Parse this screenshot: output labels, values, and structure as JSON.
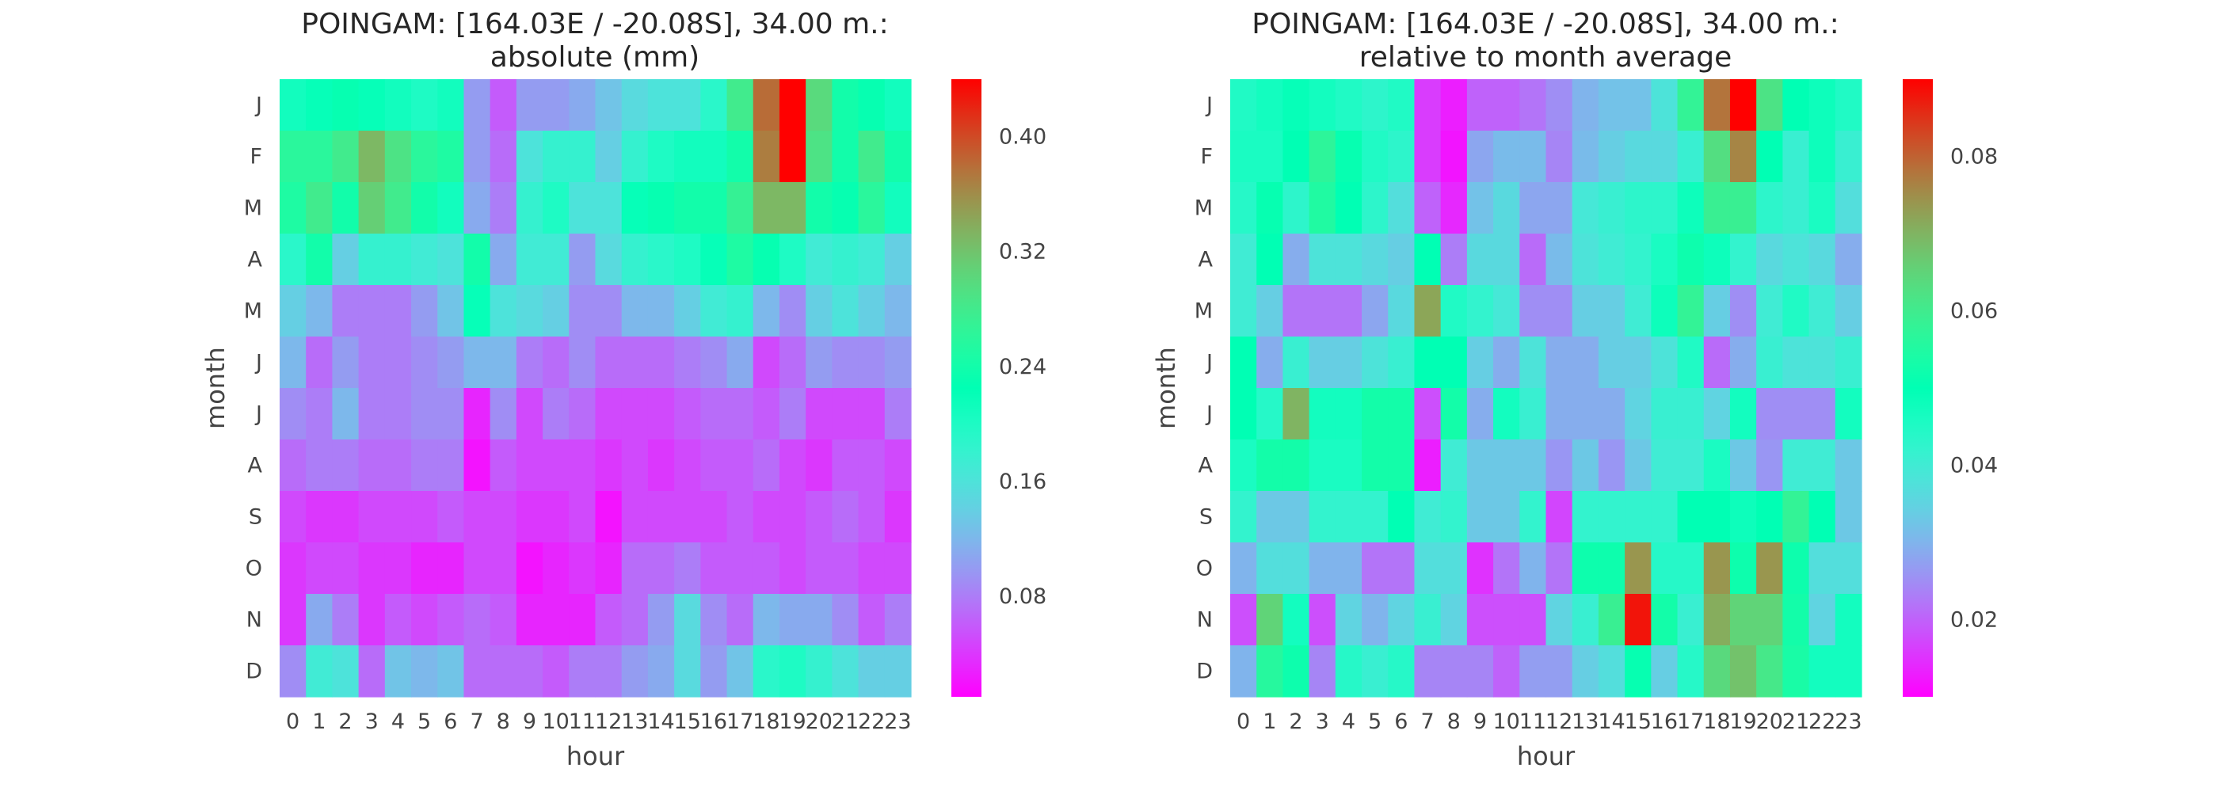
{
  "chart_data": [
    {
      "type": "heatmap",
      "title": "POINGAM: [164.03E / -20.08S], 34.00 m.:\nabsolute (mm)",
      "xlabel": "hour",
      "ylabel": "month",
      "x": [
        "0",
        "1",
        "2",
        "3",
        "4",
        "5",
        "6",
        "7",
        "8",
        "9",
        "10",
        "11",
        "12",
        "13",
        "14",
        "15",
        "16",
        "17",
        "18",
        "19",
        "20",
        "21",
        "22",
        "23"
      ],
      "y": [
        "J",
        "F",
        "M",
        "A",
        "M",
        "J",
        "J",
        "A",
        "S",
        "O",
        "N",
        "D"
      ],
      "colormap": "rainbow",
      "vmin": 0.01,
      "vmax": 0.44,
      "colorbar_ticks": [
        0.08,
        0.16,
        0.24,
        0.32,
        0.4
      ],
      "colorbar_tick_labels": [
        "0.08",
        "0.16",
        "0.24",
        "0.32",
        "0.40"
      ],
      "values": [
        [
          0.21,
          0.22,
          0.23,
          0.22,
          0.21,
          0.2,
          0.21,
          0.1,
          0.06,
          0.1,
          0.1,
          0.11,
          0.13,
          0.15,
          0.16,
          0.16,
          0.19,
          0.28,
          0.38,
          0.44,
          0.3,
          0.24,
          0.23,
          0.21
        ],
        [
          0.26,
          0.26,
          0.28,
          0.33,
          0.29,
          0.26,
          0.25,
          0.1,
          0.07,
          0.16,
          0.18,
          0.18,
          0.14,
          0.18,
          0.2,
          0.21,
          0.21,
          0.24,
          0.37,
          0.44,
          0.29,
          0.24,
          0.28,
          0.24
        ],
        [
          0.25,
          0.28,
          0.24,
          0.31,
          0.28,
          0.24,
          0.21,
          0.11,
          0.08,
          0.18,
          0.2,
          0.16,
          0.16,
          0.22,
          0.23,
          0.24,
          0.24,
          0.27,
          0.33,
          0.33,
          0.24,
          0.23,
          0.26,
          0.21
        ],
        [
          0.19,
          0.24,
          0.14,
          0.18,
          0.18,
          0.17,
          0.16,
          0.24,
          0.11,
          0.17,
          0.17,
          0.1,
          0.15,
          0.18,
          0.19,
          0.2,
          0.22,
          0.25,
          0.23,
          0.2,
          0.17,
          0.18,
          0.17,
          0.14
        ],
        [
          0.14,
          0.12,
          0.08,
          0.08,
          0.08,
          0.1,
          0.13,
          0.22,
          0.16,
          0.15,
          0.14,
          0.09,
          0.09,
          0.12,
          0.12,
          0.14,
          0.17,
          0.18,
          0.12,
          0.09,
          0.14,
          0.16,
          0.14,
          0.12
        ],
        [
          0.12,
          0.07,
          0.1,
          0.08,
          0.08,
          0.09,
          0.1,
          0.12,
          0.12,
          0.08,
          0.07,
          0.09,
          0.07,
          0.07,
          0.07,
          0.08,
          0.09,
          0.11,
          0.05,
          0.07,
          0.1,
          0.09,
          0.09,
          0.1
        ],
        [
          0.09,
          0.08,
          0.12,
          0.08,
          0.08,
          0.09,
          0.09,
          0.03,
          0.09,
          0.05,
          0.08,
          0.07,
          0.05,
          0.05,
          0.05,
          0.06,
          0.07,
          0.07,
          0.06,
          0.08,
          0.05,
          0.05,
          0.05,
          0.08
        ],
        [
          0.07,
          0.08,
          0.08,
          0.07,
          0.07,
          0.08,
          0.08,
          0.02,
          0.06,
          0.05,
          0.05,
          0.05,
          0.04,
          0.05,
          0.04,
          0.05,
          0.06,
          0.06,
          0.07,
          0.05,
          0.04,
          0.06,
          0.06,
          0.05
        ],
        [
          0.05,
          0.04,
          0.04,
          0.05,
          0.05,
          0.05,
          0.06,
          0.05,
          0.05,
          0.04,
          0.04,
          0.05,
          0.02,
          0.05,
          0.05,
          0.05,
          0.05,
          0.06,
          0.05,
          0.05,
          0.06,
          0.07,
          0.06,
          0.04
        ],
        [
          0.04,
          0.05,
          0.05,
          0.04,
          0.04,
          0.03,
          0.03,
          0.05,
          0.05,
          0.02,
          0.03,
          0.04,
          0.03,
          0.07,
          0.07,
          0.08,
          0.06,
          0.06,
          0.06,
          0.05,
          0.06,
          0.06,
          0.05,
          0.05
        ],
        [
          0.04,
          0.11,
          0.08,
          0.04,
          0.06,
          0.05,
          0.06,
          0.07,
          0.06,
          0.03,
          0.03,
          0.03,
          0.06,
          0.07,
          0.1,
          0.15,
          0.09,
          0.07,
          0.12,
          0.11,
          0.11,
          0.09,
          0.06,
          0.08
        ],
        [
          0.09,
          0.17,
          0.16,
          0.07,
          0.13,
          0.12,
          0.13,
          0.07,
          0.07,
          0.07,
          0.06,
          0.08,
          0.08,
          0.1,
          0.11,
          0.15,
          0.1,
          0.13,
          0.19,
          0.2,
          0.18,
          0.16,
          0.14,
          0.14
        ]
      ]
    },
    {
      "type": "heatmap",
      "title": "POINGAM: [164.03E / -20.08S], 34.00 m.:\nrelative to month average",
      "xlabel": "hour",
      "ylabel": "month",
      "x": [
        "0",
        "1",
        "2",
        "3",
        "4",
        "5",
        "6",
        "7",
        "8",
        "9",
        "10",
        "11",
        "12",
        "13",
        "14",
        "15",
        "16",
        "17",
        "18",
        "19",
        "20",
        "21",
        "22",
        "23"
      ],
      "y": [
        "J",
        "F",
        "M",
        "A",
        "M",
        "J",
        "J",
        "A",
        "S",
        "O",
        "N",
        "D"
      ],
      "colormap": "rainbow",
      "vmin": 0.01,
      "vmax": 0.09,
      "colorbar_ticks": [
        0.02,
        0.04,
        0.06,
        0.08
      ],
      "colorbar_tick_labels": [
        "0.02",
        "0.04",
        "0.06",
        "0.08"
      ],
      "values": [
        [
          0.045,
          0.047,
          0.049,
          0.047,
          0.045,
          0.043,
          0.045,
          0.016,
          0.013,
          0.02,
          0.02,
          0.022,
          0.025,
          0.03,
          0.032,
          0.032,
          0.038,
          0.058,
          0.078,
          0.09,
          0.062,
          0.05,
          0.048,
          0.045
        ],
        [
          0.046,
          0.046,
          0.05,
          0.057,
          0.051,
          0.045,
          0.043,
          0.016,
          0.012,
          0.028,
          0.031,
          0.031,
          0.024,
          0.031,
          0.034,
          0.036,
          0.036,
          0.041,
          0.063,
          0.076,
          0.05,
          0.041,
          0.048,
          0.041
        ],
        [
          0.044,
          0.051,
          0.043,
          0.055,
          0.05,
          0.043,
          0.037,
          0.02,
          0.014,
          0.032,
          0.036,
          0.028,
          0.028,
          0.039,
          0.041,
          0.043,
          0.043,
          0.048,
          0.059,
          0.059,
          0.043,
          0.041,
          0.046,
          0.037
        ],
        [
          0.04,
          0.05,
          0.029,
          0.038,
          0.038,
          0.036,
          0.034,
          0.05,
          0.023,
          0.036,
          0.036,
          0.021,
          0.031,
          0.038,
          0.04,
          0.042,
          0.046,
          0.052,
          0.048,
          0.042,
          0.036,
          0.038,
          0.036,
          0.029
        ],
        [
          0.04,
          0.034,
          0.022,
          0.022,
          0.022,
          0.028,
          0.036,
          0.072,
          0.045,
          0.042,
          0.039,
          0.025,
          0.025,
          0.034,
          0.034,
          0.04,
          0.048,
          0.058,
          0.034,
          0.025,
          0.04,
          0.045,
          0.04,
          0.034
        ],
        [
          0.05,
          0.029,
          0.041,
          0.034,
          0.034,
          0.038,
          0.041,
          0.05,
          0.05,
          0.034,
          0.029,
          0.038,
          0.029,
          0.029,
          0.034,
          0.034,
          0.038,
          0.045,
          0.021,
          0.029,
          0.041,
          0.038,
          0.038,
          0.041
        ],
        [
          0.05,
          0.044,
          0.07,
          0.047,
          0.047,
          0.053,
          0.053,
          0.018,
          0.053,
          0.029,
          0.047,
          0.041,
          0.029,
          0.029,
          0.029,
          0.035,
          0.041,
          0.041,
          0.035,
          0.047,
          0.025,
          0.025,
          0.025,
          0.047
        ],
        [
          0.046,
          0.053,
          0.053,
          0.046,
          0.046,
          0.053,
          0.053,
          0.013,
          0.04,
          0.033,
          0.033,
          0.033,
          0.026,
          0.033,
          0.026,
          0.033,
          0.04,
          0.04,
          0.046,
          0.033,
          0.026,
          0.04,
          0.04,
          0.033
        ],
        [
          0.042,
          0.033,
          0.033,
          0.042,
          0.042,
          0.042,
          0.05,
          0.04,
          0.042,
          0.033,
          0.033,
          0.042,
          0.017,
          0.042,
          0.042,
          0.042,
          0.042,
          0.05,
          0.05,
          0.048,
          0.05,
          0.058,
          0.05,
          0.033
        ],
        [
          0.03,
          0.037,
          0.037,
          0.03,
          0.03,
          0.022,
          0.022,
          0.037,
          0.037,
          0.015,
          0.022,
          0.03,
          0.022,
          0.052,
          0.052,
          0.074,
          0.044,
          0.044,
          0.074,
          0.052,
          0.074,
          0.052,
          0.037,
          0.037
        ],
        [
          0.018,
          0.065,
          0.047,
          0.018,
          0.035,
          0.03,
          0.035,
          0.041,
          0.035,
          0.018,
          0.018,
          0.018,
          0.035,
          0.041,
          0.059,
          0.088,
          0.053,
          0.041,
          0.071,
          0.065,
          0.065,
          0.053,
          0.035,
          0.047
        ],
        [
          0.03,
          0.056,
          0.052,
          0.024,
          0.044,
          0.041,
          0.044,
          0.024,
          0.024,
          0.024,
          0.02,
          0.027,
          0.027,
          0.034,
          0.037,
          0.051,
          0.034,
          0.044,
          0.064,
          0.068,
          0.061,
          0.054,
          0.047,
          0.047
        ]
      ]
    }
  ]
}
